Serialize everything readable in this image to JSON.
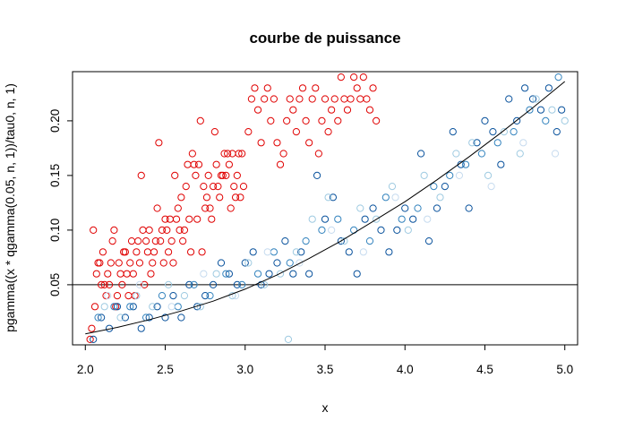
{
  "chart_data": {
    "type": "scatter",
    "title": "courbe de puissance",
    "xlabel": "x",
    "ylabel": "pgamma((x * qgamma(0.05, n, 1))/tau0, n, 1)",
    "xlim": [
      1.92,
      5.08
    ],
    "ylim": [
      -0.005,
      0.245
    ],
    "x_ticks": [
      2.0,
      2.5,
      3.0,
      3.5,
      4.0,
      4.5,
      5.0
    ],
    "x_tick_labels": [
      "2.0",
      "2.5",
      "3.0",
      "3.5",
      "4.0",
      "4.5",
      "5.0"
    ],
    "y_ticks": [
      0.05,
      0.1,
      0.15,
      0.2
    ],
    "y_tick_labels": [
      "0.05",
      "0.10",
      "0.15",
      "0.20"
    ],
    "reference_line": {
      "y": 0.05,
      "color": "#000000"
    },
    "curve": {
      "x": [
        2.0,
        2.2,
        2.4,
        2.6,
        2.8,
        3.0,
        3.2,
        3.4,
        3.6,
        3.8,
        4.0,
        4.2,
        4.4,
        4.6,
        4.8,
        5.0
      ],
      "y": [
        0.005,
        0.011,
        0.018,
        0.026,
        0.035,
        0.046,
        0.059,
        0.074,
        0.09,
        0.108,
        0.126,
        0.146,
        0.167,
        0.189,
        0.212,
        0.236
      ]
    },
    "marker": "open-circle",
    "colors": {
      "red": "#e00000",
      "blue_dark": "#08519c",
      "blue_mid": "#3182bd",
      "blue_light": "#9ecae1",
      "blue_faint": "#c6dbef"
    },
    "series": [
      {
        "color": "#e00000",
        "points": [
          [
            2.03,
            0.0
          ],
          [
            2.04,
            0.01
          ],
          [
            2.05,
            0.1
          ],
          [
            2.06,
            0.03
          ],
          [
            2.07,
            0.06
          ],
          [
            2.08,
            0.07
          ],
          [
            2.09,
            0.07
          ],
          [
            2.1,
            0.05
          ],
          [
            2.11,
            0.08
          ],
          [
            2.12,
            0.05
          ],
          [
            2.13,
            0.04
          ],
          [
            2.14,
            0.06
          ],
          [
            2.15,
            0.05
          ],
          [
            2.16,
            0.07
          ],
          [
            2.17,
            0.09
          ],
          [
            2.18,
            0.1
          ],
          [
            2.19,
            0.03
          ],
          [
            2.2,
            0.04
          ],
          [
            2.21,
            0.07
          ],
          [
            2.22,
            0.06
          ],
          [
            2.23,
            0.05
          ],
          [
            2.24,
            0.08
          ],
          [
            2.25,
            0.08
          ],
          [
            2.26,
            0.06
          ],
          [
            2.27,
            0.04
          ],
          [
            2.28,
            0.07
          ],
          [
            2.29,
            0.09
          ],
          [
            2.3,
            0.06
          ],
          [
            2.31,
            0.04
          ],
          [
            2.32,
            0.08
          ],
          [
            2.33,
            0.09
          ],
          [
            2.34,
            0.07
          ],
          [
            2.35,
            0.15
          ],
          [
            2.36,
            0.1
          ],
          [
            2.37,
            0.05
          ],
          [
            2.38,
            0.09
          ],
          [
            2.39,
            0.08
          ],
          [
            2.4,
            0.1
          ],
          [
            2.41,
            0.06
          ],
          [
            2.42,
            0.07
          ],
          [
            2.43,
            0.08
          ],
          [
            2.44,
            0.09
          ],
          [
            2.45,
            0.12
          ],
          [
            2.46,
            0.18
          ],
          [
            2.47,
            0.09
          ],
          [
            2.48,
            0.1
          ],
          [
            2.49,
            0.07
          ],
          [
            2.5,
            0.11
          ],
          [
            2.51,
            0.1
          ],
          [
            2.52,
            0.08
          ],
          [
            2.53,
            0.11
          ],
          [
            2.54,
            0.09
          ],
          [
            2.55,
            0.07
          ],
          [
            2.56,
            0.15
          ],
          [
            2.57,
            0.11
          ],
          [
            2.58,
            0.12
          ],
          [
            2.59,
            0.1
          ],
          [
            2.6,
            0.13
          ],
          [
            2.61,
            0.09
          ],
          [
            2.62,
            0.1
          ],
          [
            2.63,
            0.14
          ],
          [
            2.64,
            0.16
          ],
          [
            2.65,
            0.11
          ],
          [
            2.66,
            0.08
          ],
          [
            2.67,
            0.17
          ],
          [
            2.68,
            0.16
          ],
          [
            2.69,
            0.15
          ],
          [
            2.7,
            0.11
          ],
          [
            2.71,
            0.16
          ],
          [
            2.72,
            0.2
          ],
          [
            2.73,
            0.08
          ],
          [
            2.74,
            0.14
          ],
          [
            2.75,
            0.12
          ],
          [
            2.76,
            0.13
          ],
          [
            2.77,
            0.15
          ],
          [
            2.78,
            0.12
          ],
          [
            2.79,
            0.11
          ],
          [
            2.8,
            0.14
          ],
          [
            2.81,
            0.19
          ],
          [
            2.82,
            0.16
          ],
          [
            2.83,
            0.14
          ],
          [
            2.84,
            0.13
          ],
          [
            2.85,
            0.15
          ],
          [
            2.86,
            0.15
          ],
          [
            2.87,
            0.17
          ],
          [
            2.88,
            0.15
          ],
          [
            2.89,
            0.17
          ],
          [
            2.9,
            0.16
          ],
          [
            2.91,
            0.12
          ],
          [
            2.92,
            0.17
          ],
          [
            2.93,
            0.14
          ],
          [
            2.94,
            0.13
          ],
          [
            2.95,
            0.15
          ],
          [
            2.96,
            0.17
          ],
          [
            2.97,
            0.13
          ],
          [
            2.98,
            0.17
          ],
          [
            2.99,
            0.14
          ],
          [
            3.02,
            0.19
          ],
          [
            3.04,
            0.22
          ],
          [
            3.06,
            0.23
          ],
          [
            3.08,
            0.21
          ],
          [
            3.1,
            0.18
          ],
          [
            3.12,
            0.22
          ],
          [
            3.14,
            0.23
          ],
          [
            3.16,
            0.2
          ],
          [
            3.18,
            0.22
          ],
          [
            3.2,
            0.18
          ],
          [
            3.22,
            0.16
          ],
          [
            3.24,
            0.17
          ],
          [
            3.26,
            0.2
          ],
          [
            3.28,
            0.22
          ],
          [
            3.3,
            0.21
          ],
          [
            3.32,
            0.19
          ],
          [
            3.34,
            0.22
          ],
          [
            3.36,
            0.23
          ],
          [
            3.38,
            0.2
          ],
          [
            3.4,
            0.18
          ],
          [
            3.42,
            0.22
          ],
          [
            3.44,
            0.23
          ],
          [
            3.46,
            0.17
          ],
          [
            3.48,
            0.2
          ],
          [
            3.5,
            0.22
          ],
          [
            3.52,
            0.19
          ],
          [
            3.54,
            0.21
          ],
          [
            3.56,
            0.22
          ],
          [
            3.58,
            0.2
          ],
          [
            3.6,
            0.24
          ],
          [
            3.62,
            0.22
          ],
          [
            3.64,
            0.21
          ],
          [
            3.66,
            0.22
          ],
          [
            3.68,
            0.24
          ],
          [
            3.7,
            0.23
          ],
          [
            3.72,
            0.22
          ],
          [
            3.74,
            0.24
          ],
          [
            3.76,
            0.22
          ],
          [
            3.78,
            0.21
          ],
          [
            3.8,
            0.23
          ],
          [
            3.82,
            0.2
          ]
        ]
      },
      {
        "color": "#08519c",
        "points": [
          [
            2.05,
            0.0
          ],
          [
            2.1,
            0.02
          ],
          [
            2.15,
            0.01
          ],
          [
            2.2,
            0.03
          ],
          [
            2.25,
            0.02
          ],
          [
            2.3,
            0.03
          ],
          [
            2.35,
            0.01
          ],
          [
            2.4,
            0.02
          ],
          [
            2.45,
            0.03
          ],
          [
            2.5,
            0.02
          ],
          [
            2.55,
            0.04
          ],
          [
            2.6,
            0.02
          ],
          [
            2.65,
            0.05
          ],
          [
            2.7,
            0.03
          ],
          [
            2.75,
            0.04
          ],
          [
            2.8,
            0.05
          ],
          [
            2.85,
            0.07
          ],
          [
            2.9,
            0.06
          ],
          [
            2.95,
            0.05
          ],
          [
            3.0,
            0.07
          ],
          [
            3.05,
            0.08
          ],
          [
            3.1,
            0.05
          ],
          [
            3.15,
            0.06
          ],
          [
            3.2,
            0.07
          ],
          [
            3.25,
            0.09
          ],
          [
            3.3,
            0.06
          ],
          [
            3.35,
            0.08
          ],
          [
            3.4,
            0.06
          ],
          [
            3.45,
            0.15
          ],
          [
            3.5,
            0.11
          ],
          [
            3.55,
            0.13
          ],
          [
            3.6,
            0.09
          ],
          [
            3.65,
            0.08
          ],
          [
            3.7,
            0.06
          ],
          [
            3.75,
            0.11
          ],
          [
            3.8,
            0.12
          ],
          [
            3.85,
            0.1
          ],
          [
            3.9,
            0.08
          ],
          [
            3.95,
            0.1
          ],
          [
            4.0,
            0.12
          ],
          [
            4.05,
            0.11
          ],
          [
            4.1,
            0.17
          ],
          [
            4.15,
            0.09
          ],
          [
            4.2,
            0.12
          ],
          [
            4.25,
            0.14
          ],
          [
            4.3,
            0.19
          ],
          [
            4.35,
            0.16
          ],
          [
            4.4,
            0.12
          ],
          [
            4.45,
            0.18
          ],
          [
            4.5,
            0.2
          ],
          [
            4.55,
            0.19
          ],
          [
            4.6,
            0.16
          ],
          [
            4.65,
            0.22
          ],
          [
            4.7,
            0.2
          ],
          [
            4.75,
            0.23
          ],
          [
            4.8,
            0.22
          ],
          [
            4.85,
            0.21
          ],
          [
            4.9,
            0.23
          ],
          [
            4.95,
            0.19
          ],
          [
            4.98,
            0.21
          ]
        ]
      },
      {
        "color": "#3182bd",
        "points": [
          [
            2.08,
            0.02
          ],
          [
            2.18,
            0.03
          ],
          [
            2.28,
            0.03
          ],
          [
            2.38,
            0.02
          ],
          [
            2.48,
            0.04
          ],
          [
            2.58,
            0.03
          ],
          [
            2.68,
            0.05
          ],
          [
            2.78,
            0.04
          ],
          [
            2.88,
            0.06
          ],
          [
            2.98,
            0.05
          ],
          [
            3.08,
            0.06
          ],
          [
            3.18,
            0.08
          ],
          [
            3.28,
            0.07
          ],
          [
            3.38,
            0.09
          ],
          [
            3.48,
            0.1
          ],
          [
            3.58,
            0.11
          ],
          [
            3.68,
            0.1
          ],
          [
            3.78,
            0.09
          ],
          [
            3.88,
            0.13
          ],
          [
            3.98,
            0.11
          ],
          [
            4.08,
            0.12
          ],
          [
            4.18,
            0.14
          ],
          [
            4.28,
            0.15
          ],
          [
            4.38,
            0.16
          ],
          [
            4.48,
            0.17
          ],
          [
            4.58,
            0.18
          ],
          [
            4.68,
            0.19
          ],
          [
            4.78,
            0.21
          ],
          [
            4.88,
            0.2
          ],
          [
            4.96,
            0.24
          ]
        ]
      },
      {
        "color": "#9ecae1",
        "points": [
          [
            2.12,
            0.03
          ],
          [
            2.22,
            0.02
          ],
          [
            2.32,
            0.04
          ],
          [
            2.42,
            0.03
          ],
          [
            2.52,
            0.05
          ],
          [
            2.62,
            0.04
          ],
          [
            2.72,
            0.03
          ],
          [
            2.82,
            0.06
          ],
          [
            2.92,
            0.04
          ],
          [
            3.02,
            0.07
          ],
          [
            3.12,
            0.05
          ],
          [
            3.22,
            0.06
          ],
          [
            3.27,
            0.0
          ],
          [
            3.32,
            0.08
          ],
          [
            3.42,
            0.11
          ],
          [
            3.52,
            0.13
          ],
          [
            3.62,
            0.09
          ],
          [
            3.72,
            0.12
          ],
          [
            3.82,
            0.11
          ],
          [
            3.92,
            0.14
          ],
          [
            4.02,
            0.1
          ],
          [
            4.12,
            0.15
          ],
          [
            4.22,
            0.13
          ],
          [
            4.32,
            0.17
          ],
          [
            4.42,
            0.18
          ],
          [
            4.52,
            0.15
          ],
          [
            4.62,
            0.19
          ],
          [
            4.72,
            0.17
          ],
          [
            4.82,
            0.22
          ],
          [
            4.92,
            0.21
          ],
          [
            5.0,
            0.2
          ]
        ]
      },
      {
        "color": "#c6dbef",
        "points": [
          [
            2.14,
            0.04
          ],
          [
            2.34,
            0.05
          ],
          [
            2.54,
            0.03
          ],
          [
            2.74,
            0.06
          ],
          [
            2.94,
            0.04
          ],
          [
            3.14,
            0.08
          ],
          [
            3.34,
            0.07
          ],
          [
            3.54,
            0.1
          ],
          [
            3.74,
            0.08
          ],
          [
            3.94,
            0.13
          ],
          [
            4.14,
            0.11
          ],
          [
            4.34,
            0.15
          ],
          [
            4.54,
            0.14
          ],
          [
            4.74,
            0.18
          ],
          [
            4.94,
            0.17
          ]
        ]
      }
    ]
  }
}
